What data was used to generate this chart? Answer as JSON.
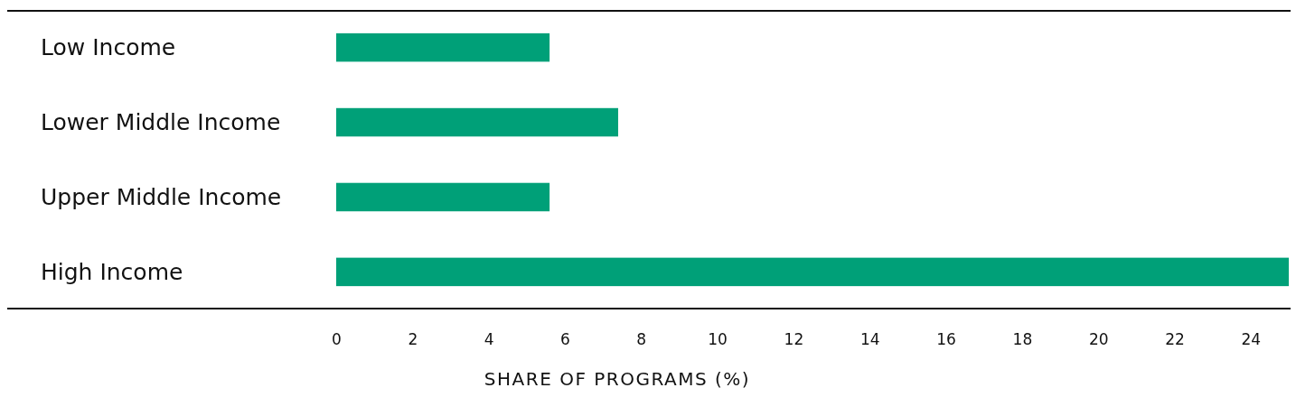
{
  "chart_data": {
    "type": "bar",
    "orientation": "horizontal",
    "xlabel": "SHARE OF PROGRAMS (%)",
    "categories": [
      "Low Income",
      "Lower Middle Income",
      "Upper Middle Income",
      "High Income"
    ],
    "values": [
      5.6,
      7.4,
      5.6,
      25
    ],
    "color": "#00a078",
    "xlim": [
      0,
      25
    ],
    "xticks": [
      0,
      2,
      4,
      6,
      8,
      10,
      12,
      14,
      16,
      18,
      20,
      22,
      24
    ],
    "grid": false
  }
}
